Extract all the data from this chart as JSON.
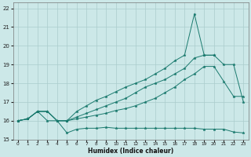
{
  "xlabel": "Humidex (Indice chaleur)",
  "bg_color": "#cce8e8",
  "grid_color": "#aacccc",
  "line_color": "#1a7a6e",
  "xlim": [
    -0.5,
    23.5
  ],
  "ylim": [
    15,
    22.3
  ],
  "xticks": [
    0,
    1,
    2,
    3,
    4,
    5,
    6,
    7,
    8,
    9,
    10,
    11,
    12,
    13,
    14,
    15,
    16,
    17,
    18,
    19,
    20,
    21,
    22,
    23
  ],
  "yticks": [
    15,
    16,
    17,
    18,
    19,
    20,
    21,
    22
  ],
  "x": [
    0,
    1,
    2,
    3,
    4,
    5,
    6,
    7,
    8,
    9,
    10,
    11,
    12,
    13,
    14,
    15,
    16,
    17,
    18,
    19,
    20,
    21,
    22,
    23
  ],
  "line1_y": [
    16.0,
    16.1,
    16.5,
    16.0,
    16.0,
    15.35,
    15.55,
    15.6,
    15.6,
    15.65,
    15.6,
    15.6,
    15.6,
    15.6,
    15.6,
    15.6,
    15.6,
    15.6,
    15.6,
    15.55,
    15.55,
    15.55,
    15.4,
    15.35
  ],
  "line2_y": [
    16.0,
    16.1,
    16.5,
    16.5,
    16.0,
    16.0,
    16.1,
    16.2,
    16.3,
    16.4,
    16.55,
    16.65,
    16.8,
    17.0,
    17.2,
    17.5,
    17.8,
    18.2,
    18.5,
    18.9,
    18.9,
    18.1,
    17.3,
    17.3
  ],
  "line3_y": [
    16.0,
    16.1,
    16.5,
    16.5,
    16.0,
    16.0,
    16.2,
    16.4,
    16.6,
    16.8,
    17.0,
    17.2,
    17.5,
    17.8,
    18.0,
    18.2,
    18.5,
    18.8,
    19.35,
    19.5,
    19.5,
    19.0,
    19.0,
    17.0
  ],
  "line4_y": [
    16.0,
    16.1,
    16.5,
    16.5,
    16.0,
    16.0,
    16.5,
    16.8,
    17.1,
    17.3,
    17.55,
    17.8,
    18.0,
    18.2,
    18.5,
    18.8,
    19.2,
    19.5,
    21.7,
    19.5,
    19.5,
    null,
    null,
    null
  ]
}
